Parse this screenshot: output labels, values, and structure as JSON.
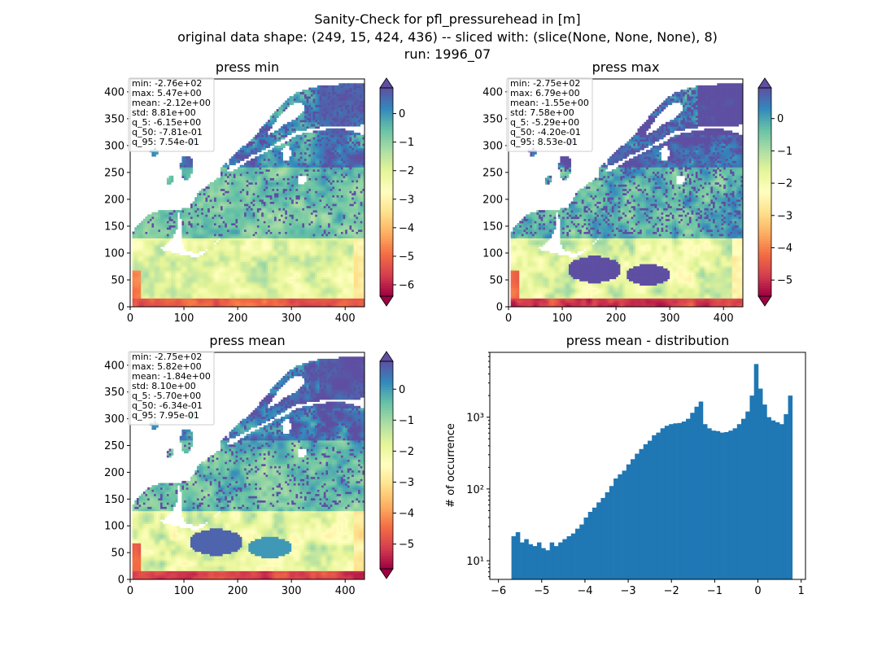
{
  "suptitle": [
    "Sanity-Check for pfl_pressurehead in [m]",
    "original data shape: (249, 15, 424, 436) -- sliced with: (slice(None, None, None), 8)",
    "run: 1996_07"
  ],
  "maps": [
    {
      "title": "press min",
      "stats": [
        "min: -2.76e+02",
        "max: 5.47e+00",
        "mean: -2.12e+00",
        "std: 8.81e+00",
        "q_5: -6.15e+00",
        "q_50: -7.81e-01",
        "q_95: 7.54e-01"
      ],
      "cbar_ticks": [
        "0",
        "−1",
        "−2",
        "−3",
        "−4",
        "−5",
        "−6"
      ],
      "cbar_range": [
        -6.4,
        0.9
      ]
    },
    {
      "title": "press max",
      "stats": [
        "min: -2.75e+02",
        "max: 6.79e+00",
        "mean: -1.55e+00",
        "std: 7.58e+00",
        "q_5: -5.29e+00",
        "q_50: -4.20e-01",
        "q_95: 8.53e-01"
      ],
      "cbar_ticks": [
        "0",
        "−1",
        "−2",
        "−3",
        "−4",
        "−5"
      ],
      "cbar_range": [
        -5.5,
        0.95
      ]
    },
    {
      "title": "press mean",
      "stats": [
        "min: -2.75e+02",
        "max: 5.82e+00",
        "mean: -1.84e+00",
        "std: 8.10e+00",
        "q_5: -5.70e+00",
        "q_50: -6.34e-01",
        "q_95: 7.95e-01"
      ],
      "cbar_ticks": [
        "0",
        "−1",
        "−2",
        "−3",
        "−4",
        "−5"
      ],
      "cbar_range": [
        -5.8,
        0.9
      ]
    }
  ],
  "map_axes": {
    "x_ticks": [
      "0",
      "100",
      "200",
      "300",
      "400"
    ],
    "y_ticks": [
      "0",
      "50",
      "100",
      "150",
      "200",
      "250",
      "300",
      "350",
      "400"
    ],
    "xlim": [
      0,
      436
    ],
    "ylim": [
      0,
      424
    ]
  },
  "colormap": [
    "#9e0142",
    "#d53e4f",
    "#f46d43",
    "#fdae61",
    "#fee08b",
    "#ffffbf",
    "#e6f598",
    "#abdda4",
    "#66c2a5",
    "#3288bd",
    "#5e4fa2"
  ],
  "histogram": {
    "title": "press mean - distribution",
    "ylabel": "# of occurrence",
    "x_ticks": [
      "−6",
      "−5",
      "−4",
      "−3",
      "−2",
      "−1",
      "0",
      "1"
    ],
    "y_ticks": [
      "10¹",
      "10²",
      "10³"
    ],
    "bar_color": "#1f77b4"
  },
  "chart_data": [
    {
      "type": "heatmap",
      "title": "press min",
      "xlim": [
        0,
        436
      ],
      "ylim": [
        0,
        424
      ],
      "colorbar_range": [
        -6.4,
        0.9
      ],
      "statistics": {
        "min": -276,
        "max": 5.47,
        "mean": -2.12,
        "std": 8.81,
        "q_5": -6.15,
        "q_50": -0.781,
        "q_95": 0.754
      }
    },
    {
      "type": "heatmap",
      "title": "press max",
      "xlim": [
        0,
        436
      ],
      "ylim": [
        0,
        424
      ],
      "colorbar_range": [
        -5.5,
        0.95
      ],
      "statistics": {
        "min": -275,
        "max": 6.79,
        "mean": -1.55,
        "std": 7.58,
        "q_5": -5.29,
        "q_50": -0.42,
        "q_95": 0.853
      }
    },
    {
      "type": "heatmap",
      "title": "press mean",
      "xlim": [
        0,
        436
      ],
      "ylim": [
        0,
        424
      ],
      "colorbar_range": [
        -5.8,
        0.9
      ],
      "statistics": {
        "min": -275,
        "max": 5.82,
        "mean": -1.84,
        "std": 8.1,
        "q_5": -5.7,
        "q_50": -0.634,
        "q_95": 0.795
      }
    },
    {
      "type": "bar",
      "title": "press mean - distribution",
      "ylabel": "# of occurrence",
      "y_scale": "log",
      "xlim": [
        -6.2,
        1.1
      ],
      "ylim": [
        5.5,
        8000
      ],
      "bin_range": [
        -5.7,
        0.795
      ],
      "x": [
        -5.7,
        -5.6,
        -5.5,
        -5.4,
        -5.3,
        -5.2,
        -5.1,
        -5.0,
        -4.9,
        -4.8,
        -4.7,
        -4.6,
        -4.5,
        -4.4,
        -4.3,
        -4.2,
        -4.1,
        -4.0,
        -3.9,
        -3.8,
        -3.7,
        -3.6,
        -3.5,
        -3.4,
        -3.3,
        -3.2,
        -3.1,
        -3.0,
        -2.9,
        -2.8,
        -2.7,
        -2.6,
        -2.5,
        -2.4,
        -2.3,
        -2.2,
        -2.1,
        -2.0,
        -1.9,
        -1.8,
        -1.7,
        -1.6,
        -1.5,
        -1.4,
        -1.3,
        -1.2,
        -1.1,
        -1.0,
        -0.9,
        -0.8,
        -0.7,
        -0.6,
        -0.5,
        -0.4,
        -0.3,
        -0.2,
        -0.1,
        0.0,
        0.1,
        0.2,
        0.3,
        0.4,
        0.5,
        0.6,
        0.7,
        0.8
      ],
      "values": [
        22,
        25,
        18,
        20,
        17,
        16,
        18,
        15,
        14,
        18,
        16,
        18,
        20,
        22,
        24,
        28,
        32,
        40,
        48,
        55,
        65,
        75,
        90,
        110,
        140,
        160,
        180,
        220,
        260,
        310,
        360,
        420,
        470,
        560,
        610,
        700,
        760,
        800,
        820,
        830,
        870,
        950,
        1150,
        1400,
        1650,
        800,
        700,
        650,
        640,
        610,
        620,
        650,
        700,
        800,
        950,
        1200,
        2000,
        5500,
        2500,
        1500,
        1000,
        900,
        850,
        800,
        1100,
        2000
      ]
    }
  ]
}
